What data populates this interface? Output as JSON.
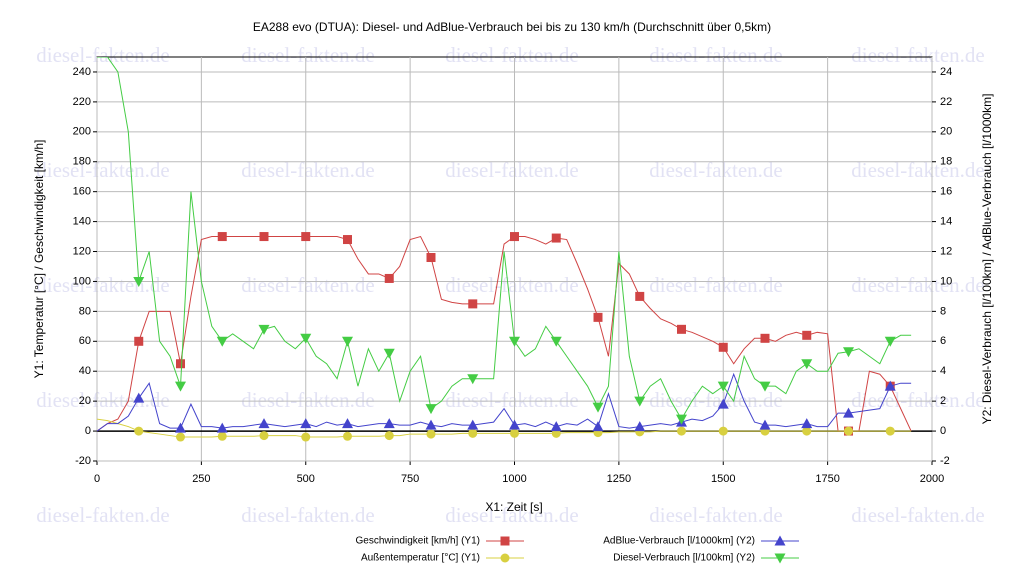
{
  "chart_data": {
    "type": "line",
    "title": "EA288 evo (DTUA): Diesel- und AdBlue-Verbrauch bei bis zu 130 km/h (Durchschnitt über 0,5km)",
    "watermark": "diesel-fakten.de",
    "xlabel": "X1: Zeit [s]",
    "ylabel": "Y1: Temperatur [°C] / Geschwindigkeit [km/h]",
    "y2label": "Y2: Diesel-Verbrauch [l/100km] / AdBlue-Verbrauch [l/1000km]",
    "x": [
      0,
      25,
      50,
      75,
      100,
      125,
      150,
      175,
      200,
      225,
      250,
      275,
      300,
      325,
      350,
      375,
      400,
      425,
      450,
      475,
      500,
      525,
      550,
      575,
      600,
      625,
      650,
      675,
      700,
      725,
      750,
      775,
      800,
      825,
      850,
      875,
      900,
      925,
      950,
      975,
      1000,
      1025,
      1050,
      1075,
      1100,
      1125,
      1150,
      1175,
      1200,
      1225,
      1250,
      1275,
      1300,
      1325,
      1350,
      1375,
      1400,
      1425,
      1450,
      1475,
      1500,
      1525,
      1550,
      1575,
      1600,
      1625,
      1650,
      1675,
      1700,
      1725,
      1750,
      1775,
      1800,
      1825,
      1850,
      1875,
      1900,
      1925,
      1950
    ],
    "series": [
      {
        "name": "Geschwindigkeit [km/h] (Y1)",
        "color": "#d04444",
        "marker": "square",
        "axis": "y1",
        "values": [
          0,
          5,
          8,
          20,
          60,
          80,
          80,
          80,
          45,
          90,
          128,
          130,
          130,
          130,
          130,
          130,
          130,
          130,
          130,
          130,
          130,
          130,
          130,
          130,
          128,
          115,
          105,
          105,
          102,
          110,
          128,
          130,
          116,
          88,
          86,
          85,
          85,
          85,
          85,
          125,
          130,
          130,
          128,
          125,
          129,
          128,
          112,
          95,
          76,
          50,
          112,
          105,
          90,
          82,
          75,
          72,
          68,
          66,
          63,
          60,
          56,
          45,
          55,
          62,
          62,
          60,
          64,
          66,
          64,
          66,
          65,
          0,
          0,
          0,
          40,
          38,
          30,
          15,
          0
        ]
      },
      {
        "name": "Außentemperatur [°C] (Y1)",
        "color": "#d8d040",
        "marker": "circle",
        "axis": "y1",
        "values": [
          8,
          7,
          5,
          3,
          0,
          -1,
          -2,
          -3,
          -4,
          -4,
          -4,
          -4,
          -3.5,
          -3.5,
          -3.5,
          -3.5,
          -3,
          -3,
          -3,
          -3,
          -4,
          -4,
          -4,
          -4,
          -3.5,
          -3.5,
          -3.5,
          -3.5,
          -3,
          -3,
          -2,
          -2,
          -2,
          -2,
          -2,
          -1.5,
          -1.5,
          -1.5,
          -1.5,
          -1.5,
          -1.5,
          -1.5,
          -1.5,
          -1.5,
          -1.5,
          -1,
          -1,
          -1,
          -1,
          -1,
          -0.5,
          -0.5,
          -0.5,
          -0.5,
          0,
          0,
          0,
          0,
          0,
          0,
          0,
          0,
          0,
          0,
          0,
          0,
          0,
          0,
          0,
          0,
          0,
          0,
          0,
          0,
          0,
          0,
          0,
          0,
          0
        ]
      },
      {
        "name": "AdBlue-Verbrauch [l/1000km] (Y2)",
        "color": "#4444cc",
        "marker": "triangle-up",
        "axis": "y2",
        "values": [
          0,
          0.5,
          0.5,
          1,
          2.2,
          3.2,
          0.5,
          0.2,
          0.2,
          1.8,
          0.3,
          0.3,
          0.2,
          0.3,
          0.3,
          0.4,
          0.5,
          0.4,
          0.3,
          0.4,
          0.5,
          0.3,
          0.6,
          0.4,
          0.5,
          0.3,
          0.4,
          0.5,
          0.5,
          0.4,
          0.4,
          0.6,
          0.4,
          0.3,
          0.5,
          0.4,
          0.4,
          0.5,
          0.6,
          1.5,
          0.4,
          0.5,
          0.3,
          0.6,
          0.3,
          0.5,
          0.4,
          0.8,
          0.3,
          2.5,
          0.3,
          0.2,
          0.3,
          0.4,
          0.5,
          0.4,
          0.6,
          0.8,
          0.7,
          1,
          1.8,
          3.8,
          2,
          0.6,
          0.4,
          0.4,
          0.3,
          0.4,
          0.5,
          0.3,
          0.3,
          1.2,
          1.2,
          1.3,
          1.4,
          1.5,
          3,
          3.2,
          3.2
        ]
      },
      {
        "name": "Diesel-Verbrauch [l/100km] (Y2)",
        "color": "#44cc44",
        "marker": "triangle-down",
        "axis": "y2",
        "values": [
          25,
          25,
          24,
          20,
          10,
          12,
          6,
          5,
          3,
          16,
          10,
          7,
          6,
          6.5,
          6,
          5.5,
          6.8,
          7,
          6,
          5.5,
          6.2,
          5,
          4.5,
          3.5,
          6,
          3,
          5.5,
          4,
          5.2,
          2,
          4,
          5,
          1.5,
          2,
          3,
          3.5,
          3.5,
          3.5,
          3.5,
          12,
          6,
          5,
          5.5,
          7,
          6,
          5,
          4,
          3,
          1.6,
          3,
          12,
          5,
          2,
          3,
          3.5,
          2,
          0.8,
          2,
          3,
          2.5,
          3,
          2,
          5,
          3.5,
          3,
          3,
          2.5,
          4,
          4.5,
          4,
          4,
          5.2,
          5.3,
          5.5,
          5,
          4.5,
          6,
          6.4,
          6.4
        ]
      }
    ],
    "xlim": [
      0,
      2000
    ],
    "xticks": [
      0,
      250,
      500,
      750,
      1000,
      1250,
      1500,
      1750,
      2000
    ],
    "ylim": [
      -20,
      250
    ],
    "yticks": [
      -20,
      0,
      20,
      40,
      60,
      80,
      100,
      120,
      140,
      160,
      180,
      200,
      220,
      240
    ],
    "y2lim": [
      -2,
      25
    ],
    "y2ticks": [
      -2,
      0,
      2,
      4,
      6,
      8,
      10,
      12,
      14,
      16,
      18,
      20,
      22,
      24
    ],
    "grid": true
  }
}
